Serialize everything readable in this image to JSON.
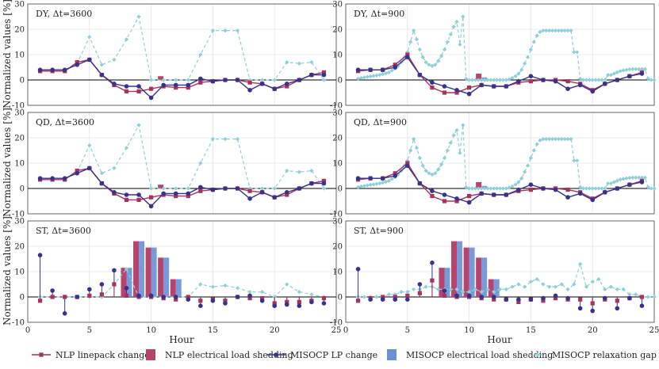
{
  "colors": {
    "nlp": "#a8325e",
    "misocp": "#36338a",
    "nlp_bar": "#b8436c",
    "misocp_bar": "#6a8fd4",
    "gap": "#8ecfd8",
    "zero": "#000000",
    "grid": "#e4e4e4"
  },
  "figure": {
    "ylabel": "Normalized values [%]",
    "xlabel": "Hour"
  },
  "legend": [
    {
      "label": "NLP linepack change",
      "kind": "line-square",
      "color_key": "nlp"
    },
    {
      "label": "NLP electrical load shedding",
      "kind": "bar",
      "color_key": "nlp_bar"
    },
    {
      "label": "MISOCP LP change",
      "kind": "line-circle",
      "color_key": "misocp"
    },
    {
      "label": "MISOCP electrical load shedding",
      "kind": "bar",
      "color_key": "misocp_bar"
    },
    {
      "label": "MISOCP relaxation gap",
      "kind": "dash-diamond",
      "color_key": "gap"
    }
  ],
  "chart_data": [
    {
      "title": "DY, Δt=3600",
      "type": "line",
      "style": "line",
      "xlim": [
        0,
        25
      ],
      "ylim": [
        -10,
        30
      ],
      "xticks": [],
      "yticks": [
        -10,
        0,
        10,
        20,
        30
      ],
      "x": [
        1,
        2,
        3,
        4,
        5,
        6,
        7,
        8,
        9,
        10,
        11,
        12,
        13,
        14,
        15,
        16,
        17,
        18,
        19,
        20,
        21,
        22,
        23,
        24
      ],
      "series": {
        "nlp": [
          3.5,
          3.5,
          3.5,
          7,
          8,
          2,
          -2,
          -4.5,
          -4.5,
          -3.5,
          -2.5,
          -3,
          -3,
          -1,
          -0.5,
          0,
          0,
          -1,
          -1.5,
          -3.5,
          -2.5,
          0,
          2,
          3
        ],
        "misocp": [
          4,
          4,
          4,
          6,
          8,
          2,
          -1.5,
          -2.5,
          -2.5,
          -7,
          -2,
          -2,
          -2,
          0.5,
          -0.5,
          0,
          0,
          -4,
          -1.5,
          -3.5,
          -1.5,
          0,
          2,
          2
        ],
        "gap": [
          3.5,
          3.5,
          3.5,
          6.5,
          17,
          6,
          8,
          16,
          25,
          0,
          0,
          0,
          0,
          10,
          19.5,
          19.5,
          19.5,
          0,
          0,
          0,
          7,
          6.5,
          7,
          0
        ]
      },
      "shed": {
        "x": [
          11
        ],
        "nlp": [
          1.5
        ],
        "misocp": [
          0
        ]
      }
    },
    {
      "title": "DY, Δt=900",
      "type": "line",
      "style": "line",
      "xlim": [
        0,
        25
      ],
      "ylim": [
        -10,
        30
      ],
      "xticks": [],
      "yticks": [
        -10,
        0,
        10,
        20,
        30
      ],
      "x": [
        1,
        2,
        3,
        4,
        5,
        6,
        7,
        8,
        9,
        10,
        11,
        12,
        13,
        14,
        15,
        16,
        17,
        18,
        19,
        20,
        21,
        22,
        23,
        24
      ],
      "series": {
        "nlp": [
          3.5,
          4,
          4,
          6,
          10,
          2,
          -3,
          -5,
          -5,
          -3,
          -2,
          -2.5,
          -2.5,
          -1,
          -0.5,
          0,
          0,
          -0.5,
          -1.5,
          -4,
          -1.5,
          0,
          1.5,
          3
        ],
        "misocp": [
          4,
          4,
          4,
          5,
          9,
          2,
          -1,
          -2.5,
          -4,
          -5.5,
          -2,
          -2.5,
          -2.5,
          -0.5,
          1.5,
          0,
          -0.5,
          -3.5,
          -2,
          -4.5,
          -1.5,
          0,
          1.5,
          2.5
        ],
        "gap_x": [
          1,
          1.25,
          1.5,
          1.75,
          2,
          2.25,
          2.5,
          2.75,
          3,
          3.25,
          3.5,
          3.75,
          4,
          4.25,
          4.5,
          4.75,
          5,
          5.25,
          5.5,
          5.75,
          6,
          6.25,
          6.5,
          6.75,
          7,
          7.25,
          7.5,
          7.75,
          8,
          8.25,
          8.5,
          8.75,
          9,
          9.25,
          9.5,
          9.75,
          10,
          10.25,
          10.5,
          10.75,
          11,
          11.25,
          11.5,
          11.75,
          12,
          12.25,
          12.5,
          12.75,
          13,
          13.25,
          13.5,
          13.75,
          14,
          14.25,
          14.5,
          14.75,
          15,
          15.25,
          15.5,
          15.75,
          16,
          16.25,
          16.5,
          16.75,
          17,
          17.25,
          17.5,
          17.75,
          18,
          18.25,
          18.5,
          18.75,
          19,
          19.25,
          19.5,
          19.75,
          20,
          20.25,
          20.5,
          20.75,
          21,
          21.25,
          21.5,
          21.75,
          22,
          22.25,
          22.5,
          22.75,
          23,
          23.25,
          23.5,
          23.75,
          24,
          24.25,
          24.5,
          24.75,
          25
        ],
        "gap": [
          0.5,
          0.8,
          1,
          1.2,
          1.4,
          1.6,
          1.8,
          2,
          2.3,
          2.6,
          3,
          3.8,
          4.5,
          5.5,
          7,
          9,
          11,
          15,
          19.5,
          16,
          12,
          9,
          7,
          6,
          5.5,
          6,
          7.5,
          9.5,
          12,
          15,
          18,
          21,
          23,
          14,
          25,
          0.5,
          0,
          0,
          0,
          0,
          0,
          0,
          0,
          0,
          0,
          0,
          0,
          0,
          0,
          0.3,
          0.8,
          1.5,
          2.5,
          4,
          6.5,
          9,
          12,
          15,
          17.5,
          19,
          19.5,
          19.5,
          19.5,
          19.5,
          19.5,
          19.5,
          19.5,
          19.5,
          19.5,
          19.5,
          11,
          11,
          0.5,
          0,
          0,
          0,
          0,
          0,
          0,
          0,
          0,
          2,
          2,
          2.5,
          3,
          3.5,
          3.8,
          4,
          4.2,
          4.3,
          4.3,
          4.3,
          4.3,
          4.3,
          0.5,
          0,
          0,
          0
        ]
      },
      "shed": {
        "x": [
          11
        ],
        "nlp": [
          2.5
        ],
        "misocp": [
          1
        ]
      }
    },
    {
      "title": "QD, Δt=3600",
      "type": "line",
      "style": "line",
      "xlim": [
        0,
        25
      ],
      "ylim": [
        -10,
        30
      ],
      "xticks": [],
      "yticks": [
        -10,
        0,
        10,
        20,
        30
      ],
      "x": [
        1,
        2,
        3,
        4,
        5,
        6,
        7,
        8,
        9,
        10,
        11,
        12,
        13,
        14,
        15,
        16,
        17,
        18,
        19,
        20,
        21,
        22,
        23,
        24
      ],
      "series": {
        "nlp": [
          3.5,
          3.5,
          3.5,
          7,
          8,
          2,
          -2,
          -4.5,
          -4.5,
          -3.5,
          -2.5,
          -3,
          -3,
          -1,
          -0.5,
          0,
          0,
          -1,
          -1.5,
          -3.5,
          -2.5,
          0,
          2,
          3
        ],
        "misocp": [
          4,
          4,
          4,
          6,
          8,
          2,
          -1.5,
          -2.5,
          -2.5,
          -7,
          -2,
          -2,
          -2,
          0.5,
          -0.5,
          0,
          0,
          -4,
          -1.5,
          -3.5,
          -1.5,
          0,
          2,
          2
        ],
        "gap": [
          3.5,
          3.5,
          3.5,
          6.5,
          17,
          6,
          8,
          16,
          25,
          0,
          0,
          0,
          0,
          10,
          19.5,
          19.5,
          19.5,
          0,
          0,
          0,
          7,
          6.5,
          7,
          0
        ]
      },
      "shed": {
        "x": [
          11
        ],
        "nlp": [
          1.5
        ],
        "misocp": [
          0
        ]
      }
    },
    {
      "title": "QD, Δt=900",
      "type": "line",
      "style": "line",
      "xlim": [
        0,
        25
      ],
      "ylim": [
        -10,
        30
      ],
      "xticks": [],
      "yticks": [
        -10,
        0,
        10,
        20,
        30
      ],
      "x": [
        1,
        2,
        3,
        4,
        5,
        6,
        7,
        8,
        9,
        10,
        11,
        12,
        13,
        14,
        15,
        16,
        17,
        18,
        19,
        20,
        21,
        22,
        23,
        24
      ],
      "series": {
        "nlp": [
          3.5,
          4,
          4,
          6,
          10,
          2,
          -3,
          -5,
          -5,
          -3,
          -2,
          -2.5,
          -2.5,
          -1,
          -0.5,
          0,
          0,
          -0.5,
          -1.5,
          -4,
          -1.5,
          0,
          1.5,
          3
        ],
        "misocp": [
          4,
          4,
          4,
          5,
          9,
          2,
          -1,
          -2.5,
          -4,
          -5.5,
          -2,
          -2.5,
          -2.5,
          -0.5,
          1.5,
          0,
          -0.5,
          -3.5,
          -2,
          -4.5,
          -1.5,
          0,
          1.5,
          2.5
        ],
        "gap_x": [
          1,
          1.25,
          1.5,
          1.75,
          2,
          2.25,
          2.5,
          2.75,
          3,
          3.25,
          3.5,
          3.75,
          4,
          4.25,
          4.5,
          4.75,
          5,
          5.25,
          5.5,
          5.75,
          6,
          6.25,
          6.5,
          6.75,
          7,
          7.25,
          7.5,
          7.75,
          8,
          8.25,
          8.5,
          8.75,
          9,
          9.25,
          9.5,
          9.75,
          10,
          10.25,
          10.5,
          10.75,
          11,
          11.25,
          11.5,
          11.75,
          12,
          12.25,
          12.5,
          12.75,
          13,
          13.25,
          13.5,
          13.75,
          14,
          14.25,
          14.5,
          14.75,
          15,
          15.25,
          15.5,
          15.75,
          16,
          16.25,
          16.5,
          16.75,
          17,
          17.25,
          17.5,
          17.75,
          18,
          18.25,
          18.5,
          18.75,
          19,
          19.25,
          19.5,
          19.75,
          20,
          20.25,
          20.5,
          20.75,
          21,
          21.25,
          21.5,
          21.75,
          22,
          22.25,
          22.5,
          22.75,
          23,
          23.25,
          23.5,
          23.75,
          24,
          24.25,
          24.5,
          24.75,
          25
        ],
        "gap": [
          0.5,
          0.8,
          1,
          1.2,
          1.4,
          1.6,
          1.8,
          2,
          2.3,
          2.6,
          3,
          3.8,
          4.5,
          5.5,
          7,
          9,
          11,
          15,
          19.5,
          16,
          12,
          9,
          7,
          6,
          5.5,
          6,
          7.5,
          9.5,
          12,
          15,
          18,
          21,
          23,
          14,
          25,
          0.5,
          0,
          0,
          0,
          0,
          0,
          0,
          0,
          0,
          0,
          0,
          0,
          0,
          0,
          0.3,
          0.8,
          1.5,
          2.5,
          4,
          6.5,
          9,
          12,
          15,
          17.5,
          19,
          19.5,
          19.5,
          19.5,
          19.5,
          19.5,
          19.5,
          19.5,
          19.5,
          19.5,
          19.5,
          11,
          11,
          0.5,
          0,
          0,
          0,
          0,
          0,
          0,
          0,
          0,
          2,
          2,
          2.5,
          3,
          3.5,
          3.8,
          4,
          4.2,
          4.3,
          4.3,
          4.3,
          4.3,
          4.3,
          0.5,
          0,
          0,
          0
        ]
      },
      "shed": {
        "x": [
          11
        ],
        "nlp": [
          2.5
        ],
        "misocp": [
          1
        ]
      }
    },
    {
      "title": "ST, Δt=3600",
      "type": "bar",
      "style": "stem",
      "xlim": [
        0,
        25
      ],
      "ylim": [
        -10,
        30
      ],
      "xticks": [
        0,
        5,
        10,
        15,
        20,
        25
      ],
      "yticks": [
        -10,
        0,
        10,
        20,
        30
      ],
      "x": [
        1,
        2,
        3,
        4,
        5,
        6,
        7,
        8,
        9,
        10,
        11,
        12,
        13,
        14,
        15,
        16,
        17,
        18,
        19,
        20,
        21,
        22,
        23,
        24
      ],
      "series": {
        "nlp": [
          -1.5,
          0,
          0,
          0,
          0.5,
          1,
          5,
          0.5,
          0,
          0,
          -0.5,
          -1,
          0,
          -1.5,
          -1,
          -1.5,
          0,
          -0.5,
          -0.5,
          -2.5,
          -2,
          -2,
          -1.5,
          -0.5
        ],
        "misocp": [
          16.5,
          2.5,
          -6.5,
          0,
          3,
          5,
          10.5,
          3.5,
          0.5,
          0.5,
          0,
          0,
          -1,
          -3.5,
          -1.5,
          -2.5,
          0,
          0.5,
          -1.5,
          -3.5,
          -3,
          -3.5,
          -2,
          -2.5
        ],
        "gap": [
          0,
          0,
          0,
          0,
          0,
          0,
          5,
          11,
          0,
          0,
          0,
          0,
          0,
          5,
          4,
          4.5,
          3.5,
          2,
          2,
          0,
          5,
          2,
          1,
          0
        ]
      },
      "shed": {
        "x": [
          8,
          9,
          10,
          11,
          12
        ],
        "nlp": [
          11.5,
          22,
          19.5,
          15.5,
          7
        ],
        "misocp": [
          11.5,
          22,
          19.5,
          15.5,
          7
        ]
      }
    },
    {
      "title": "ST, Δt=900",
      "type": "bar",
      "style": "stem",
      "xlim": [
        0,
        25
      ],
      "ylim": [
        -10,
        30
      ],
      "xticks": [
        0,
        5,
        10,
        15,
        20,
        25
      ],
      "yticks": [
        -10,
        0,
        10,
        20,
        30
      ],
      "x": [
        1,
        2,
        3,
        4,
        5,
        6,
        7,
        8,
        9,
        10,
        11,
        12,
        13,
        14,
        15,
        16,
        17,
        18,
        19,
        20,
        21,
        22,
        23,
        24
      ],
      "series": {
        "nlp": [
          -1.5,
          -0.5,
          0,
          0,
          0.5,
          1.5,
          6.5,
          0.5,
          0,
          0,
          -0.5,
          -1,
          -1,
          -2,
          -1,
          -1.5,
          -0.5,
          -1,
          -1,
          -2.5,
          -1,
          -1.5,
          -0.5,
          0
        ],
        "misocp": [
          11,
          -1,
          -1,
          -1,
          -1,
          5,
          13.5,
          2.5,
          0.5,
          0.5,
          0,
          0,
          -1,
          -1,
          -1,
          -0.5,
          0.5,
          -0.5,
          -4.5,
          -5.5,
          -0.5,
          -4.5,
          -0.5,
          -3.5
        ],
        "gap_x": [
          1,
          1.5,
          2,
          2.5,
          3,
          3.5,
          4,
          4.5,
          5,
          5.5,
          6,
          6.5,
          7,
          7.5,
          8,
          8.5,
          9,
          9.5,
          10,
          10.5,
          11,
          11.5,
          12,
          12.5,
          13,
          13.5,
          14,
          14.5,
          15,
          15.5,
          16,
          16.5,
          17,
          17.5,
          18,
          18.5,
          19,
          19.5,
          20,
          20.5,
          21,
          21.5,
          22,
          22.5,
          23,
          23.5,
          24,
          24.5,
          25
        ],
        "gap": [
          0,
          0,
          0,
          0,
          0,
          1,
          1,
          2,
          2,
          3,
          3,
          4,
          4,
          3,
          3,
          3,
          3,
          2,
          2,
          3,
          2,
          3,
          2,
          3,
          3,
          4,
          5,
          4,
          6,
          7,
          5,
          4,
          4,
          5,
          3,
          5,
          13,
          4,
          6,
          7,
          3,
          4,
          3,
          3,
          1,
          1,
          0,
          0,
          0
        ]
      },
      "shed": {
        "x": [
          8,
          9,
          10,
          11,
          12
        ],
        "nlp": [
          11.5,
          22,
          19.5,
          15.5,
          7
        ],
        "misocp": [
          11.5,
          22,
          19.5,
          15.5,
          7
        ]
      }
    }
  ]
}
